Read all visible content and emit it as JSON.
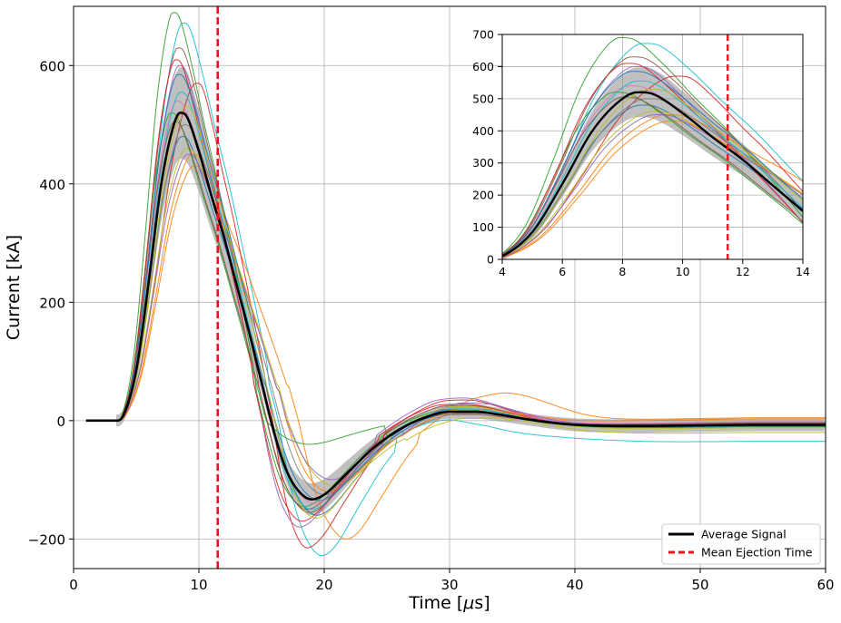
{
  "chart_data": [
    {
      "id": "main",
      "type": "line",
      "xlabel": "Time [μs]",
      "ylabel": "Current [kA]",
      "xlim": [
        0,
        60
      ],
      "ylim": [
        -250,
        700
      ],
      "xticks": [
        0,
        10,
        20,
        30,
        40,
        50,
        60
      ],
      "yticks": [
        -200,
        0,
        200,
        400,
        600
      ],
      "xtick_labels": [
        "0",
        "10",
        "20",
        "30",
        "40",
        "50",
        "60"
      ],
      "ytick_labels": [
        "−200",
        "0",
        "200",
        "400",
        "600"
      ],
      "grid": true,
      "legend_position": "lower-right",
      "legend": [
        {
          "label": "Average Signal",
          "style": "solid",
          "color": "#000000"
        },
        {
          "label": "Mean Ejection Time",
          "style": "dashed",
          "color": "#e8141e"
        }
      ],
      "mean_ejection_time": 11.5,
      "envelope_band_color": "#8c8c8c",
      "average_signal": {
        "name": "Average Signal",
        "color": "#000000",
        "x": [
          1,
          3,
          3.5,
          4,
          5,
          6,
          7,
          8,
          8.5,
          9,
          10,
          11,
          12,
          13,
          14,
          15,
          16,
          17,
          18,
          19,
          20,
          22,
          24,
          26,
          28,
          30,
          32,
          34,
          36,
          38,
          40,
          45,
          50,
          55,
          60
        ],
        "y": [
          0,
          0,
          0,
          10,
          85,
          235,
          400,
          500,
          520,
          515,
          455,
          380,
          310,
          230,
          150,
          65,
          -20,
          -85,
          -120,
          -133,
          -125,
          -85,
          -45,
          -15,
          5,
          15,
          15,
          10,
          3,
          -3,
          -7,
          -9,
          -8,
          -7,
          -7
        ]
      },
      "individual_curves": [
        {
          "color": "#2ca02c",
          "peak": 690,
          "peak_t": 8.1,
          "trough": -145,
          "trough_t": 18.6,
          "hump": 18,
          "tail": -5
        },
        {
          "color": "#17becf",
          "peak": 672,
          "peak_t": 8.9,
          "trough": -228,
          "trough_t": 20.0,
          "hump": -5,
          "hump_t": 34,
          "tail": -35
        },
        {
          "color": "#8c564b",
          "peak": 630,
          "peak_t": 8.5,
          "trough": -150,
          "trough_t": 18.8,
          "hump": 25,
          "tail": -3
        },
        {
          "color": "#ff7f0e",
          "peak": 450,
          "peak_t": 9.7,
          "trough": -200,
          "trough_t": 22.0,
          "hump": 45,
          "hump_t": 35,
          "tail": 5
        },
        {
          "color": "#d62728",
          "peak": 570,
          "peak_t": 10.0,
          "trough": -215,
          "trough_t": 18.8,
          "hump": 35,
          "tail": -8
        },
        {
          "color": "#1f77b4",
          "peak": 480,
          "peak_t": 8.8,
          "trough": -160,
          "trough_t": 19.6,
          "hump": 20,
          "tail": -10
        },
        {
          "color": "#9467bd",
          "peak": 600,
          "peak_t": 8.6,
          "trough": -180,
          "trough_t": 18.2,
          "hump": 38,
          "tail": -4
        },
        {
          "color": "#bcbd22",
          "peak": 460,
          "peak_t": 9.2,
          "trough": -110,
          "trough_t": 21.0,
          "hump": 5,
          "tail": -20
        },
        {
          "color": "#e377c2",
          "peak": 540,
          "peak_t": 8.4,
          "trough": -140,
          "trough_t": 19.4,
          "hump": 22,
          "tail": -2
        },
        {
          "color": "#7f7f7f",
          "peak": 500,
          "peak_t": 9.0,
          "trough": -125,
          "trough_t": 20.2,
          "hump": 12,
          "tail": -6
        },
        {
          "color": "#2ca02c",
          "peak": 520,
          "peak_t": 7.9,
          "trough": -40,
          "trough_t": 19.0,
          "hump": 15,
          "tail": -10
        },
        {
          "color": "#ff7f0e",
          "peak": 430,
          "peak_t": 9.8,
          "trough": -120,
          "trough_t": 20.5,
          "hump": 18,
          "tail": 3
        },
        {
          "color": "#d62728",
          "peak": 610,
          "peak_t": 8.3,
          "trough": -170,
          "trough_t": 18.4,
          "hump": 28,
          "tail": -6
        },
        {
          "color": "#17becf",
          "peak": 555,
          "peak_t": 8.7,
          "trough": -150,
          "trough_t": 19.2,
          "hump": 20,
          "tail": -8
        },
        {
          "color": "#9467bd",
          "peak": 450,
          "peak_t": 9.3,
          "trough": -100,
          "trough_t": 20.8,
          "hump": 30,
          "tail": -5
        },
        {
          "color": "#8c564b",
          "peak": 505,
          "peak_t": 8.2,
          "trough": -155,
          "trough_t": 19.0,
          "hump": 10,
          "tail": -4
        },
        {
          "color": "#1f77b4",
          "peak": 585,
          "peak_t": 8.5,
          "trough": -135,
          "trough_t": 19.8,
          "hump": 16,
          "tail": -9
        },
        {
          "color": "#bcbd22",
          "peak": 530,
          "peak_t": 9.1,
          "trough": -165,
          "trough_t": 19.5,
          "hump": 24,
          "tail": -12
        }
      ]
    },
    {
      "id": "inset",
      "type": "line",
      "xlim": [
        4,
        14
      ],
      "ylim": [
        0,
        700
      ],
      "xticks": [
        4,
        6,
        8,
        10,
        12,
        14
      ],
      "yticks": [
        0,
        100,
        200,
        300,
        400,
        500,
        600,
        700
      ],
      "xtick_labels": [
        "4",
        "6",
        "8",
        "10",
        "12",
        "14"
      ],
      "ytick_labels": [
        "0",
        "100",
        "200",
        "300",
        "400",
        "500",
        "600",
        "700"
      ],
      "grid": true,
      "mean_ejection_time": 11.5
    }
  ]
}
